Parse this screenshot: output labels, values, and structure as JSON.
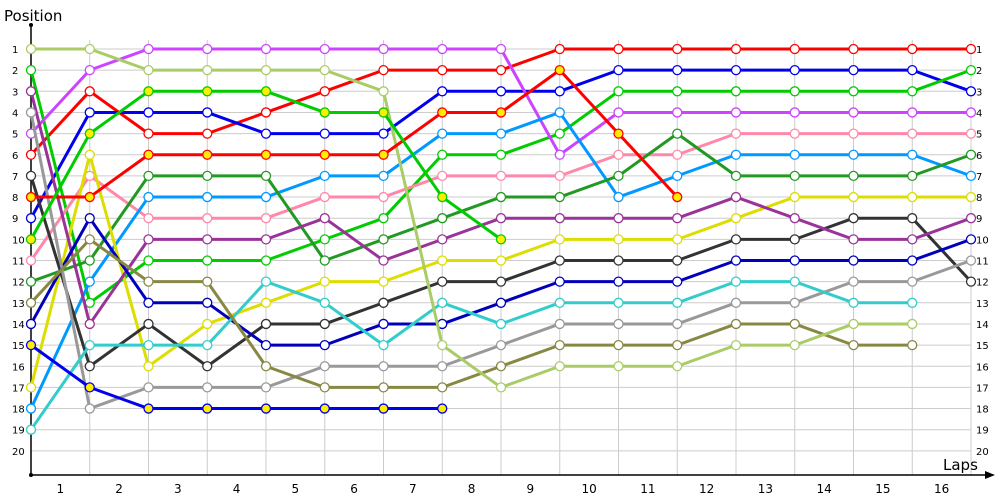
{
  "chart_data": {
    "type": "line",
    "title": "",
    "ylabel": "Position",
    "xlabel": "Laps",
    "x": [
      0,
      1,
      2,
      3,
      4,
      5,
      6,
      7,
      8,
      9,
      10,
      11,
      12,
      13,
      14,
      15,
      16
    ],
    "x_tick_labels": [
      "1",
      "2",
      "3",
      "4",
      "5",
      "6",
      "7",
      "8",
      "9",
      "10",
      "11",
      "12",
      "13",
      "14",
      "15",
      "16"
    ],
    "y_tick_labels": [
      "1",
      "2",
      "3",
      "4",
      "5",
      "6",
      "7",
      "8",
      "9",
      "10",
      "11",
      "12",
      "13",
      "14",
      "15",
      "16",
      "17",
      "18",
      "19",
      "20"
    ],
    "ylim": [
      20,
      1
    ],
    "grid": true,
    "legend": "none",
    "series": [
      {
        "name": "red",
        "color": "#ff0000",
        "marker_fill": "#ffffff",
        "values": [
          6,
          3,
          5,
          5,
          4,
          3,
          2,
          2,
          2,
          1,
          1,
          1,
          1,
          1,
          1,
          1,
          1
        ]
      },
      {
        "name": "blue",
        "color": "#0000ee",
        "marker_fill": "#ffffff",
        "values": [
          9,
          4,
          4,
          4,
          5,
          5,
          5,
          3,
          3,
          3,
          2,
          2,
          2,
          2,
          2,
          2,
          3
        ]
      },
      {
        "name": "green",
        "color": "#00cc00",
        "marker_fill": "#ffffff",
        "values": [
          2,
          13,
          11,
          11,
          11,
          10,
          9,
          6,
          6,
          5,
          3,
          3,
          3,
          3,
          3,
          3,
          2
        ]
      },
      {
        "name": "violet",
        "color": "#cc44ff",
        "marker_fill": "#ffffff",
        "values": [
          5,
          2,
          1,
          1,
          1,
          1,
          1,
          1,
          1,
          6,
          4,
          4,
          4,
          4,
          4,
          4,
          4
        ]
      },
      {
        "name": "pink",
        "color": "#ff88aa",
        "marker_fill": "#ffffff",
        "values": [
          11,
          7,
          9,
          9,
          9,
          8,
          8,
          7,
          7,
          7,
          6,
          6,
          5,
          5,
          5,
          5,
          5
        ]
      },
      {
        "name": "light-blue",
        "color": "#0099ff",
        "marker_fill": "#ffffff",
        "values": [
          18,
          12,
          8,
          8,
          8,
          7,
          7,
          5,
          5,
          4,
          8,
          7,
          6,
          6,
          6,
          6,
          7
        ]
      },
      {
        "name": "dark-green",
        "color": "#229922",
        "marker_fill": "#ffffff",
        "values": [
          12,
          11,
          7,
          7,
          7,
          11,
          10,
          9,
          8,
          8,
          7,
          5,
          7,
          7,
          7,
          7,
          6
        ]
      },
      {
        "name": "yellow",
        "color": "#dddd00",
        "marker_fill": "#ffffff",
        "values": [
          17,
          6,
          16,
          14,
          13,
          12,
          12,
          11,
          11,
          10,
          10,
          10,
          9,
          8,
          8,
          8,
          8
        ]
      },
      {
        "name": "black",
        "color": "#333333",
        "marker_fill": "#ffffff",
        "values": [
          7,
          16,
          14,
          16,
          14,
          14,
          13,
          12,
          12,
          11,
          11,
          11,
          10,
          10,
          9,
          9,
          12
        ]
      },
      {
        "name": "purple",
        "color": "#993399",
        "marker_fill": "#ffffff",
        "values": [
          3,
          14,
          10,
          10,
          10,
          9,
          11,
          10,
          9,
          9,
          9,
          9,
          8,
          9,
          10,
          10,
          9
        ]
      },
      {
        "name": "navy",
        "color": "#0000bb",
        "marker_fill": "#ffffff",
        "values": [
          14,
          9,
          13,
          13,
          15,
          15,
          14,
          14,
          13,
          12,
          12,
          12,
          11,
          11,
          11,
          11,
          10
        ]
      },
      {
        "name": "grey",
        "color": "#999999",
        "marker_fill": "#ffffff",
        "values": [
          4,
          18,
          17,
          17,
          17,
          16,
          16,
          16,
          15,
          14,
          14,
          14,
          13,
          13,
          12,
          12,
          11
        ]
      },
      {
        "name": "teal",
        "color": "#33cccc",
        "marker_fill": "#ffffff",
        "values": [
          19,
          15,
          15,
          15,
          12,
          13,
          15,
          13,
          14,
          13,
          13,
          13,
          12,
          12,
          13,
          13,
          null
        ]
      },
      {
        "name": "olive",
        "color": "#888844",
        "marker_fill": "#ffffff",
        "values": [
          13,
          10,
          12,
          12,
          16,
          17,
          17,
          17,
          16,
          15,
          15,
          15,
          14,
          14,
          15,
          15,
          null
        ]
      },
      {
        "name": "yellow-green",
        "color": "#aacc66",
        "marker_fill": "#ffffff",
        "values": [
          1,
          1,
          2,
          2,
          2,
          2,
          3,
          15,
          17,
          16,
          16,
          16,
          15,
          15,
          14,
          14,
          null
        ]
      },
      {
        "name": "red-2",
        "color": "#ff0000",
        "marker_fill": "#ffee00",
        "values": [
          8,
          8,
          6,
          6,
          6,
          6,
          6,
          4,
          4,
          2,
          5,
          8,
          null,
          null,
          null,
          null,
          null
        ]
      },
      {
        "name": "green-2",
        "color": "#00cc00",
        "marker_fill": "#ffee00",
        "values": [
          10,
          5,
          3,
          3,
          3,
          4,
          4,
          8,
          10,
          null,
          null,
          null,
          null,
          null,
          null,
          null,
          null
        ]
      },
      {
        "name": "blue-2",
        "color": "#0000ee",
        "marker_fill": "#ffee00",
        "values": [
          15,
          17,
          18,
          18,
          18,
          18,
          18,
          18,
          null,
          null,
          null,
          null,
          null,
          null,
          null,
          null,
          null
        ]
      }
    ]
  },
  "colors": {
    "grid": "#cccccc",
    "axis": "#000000",
    "background": "#ffffff"
  }
}
